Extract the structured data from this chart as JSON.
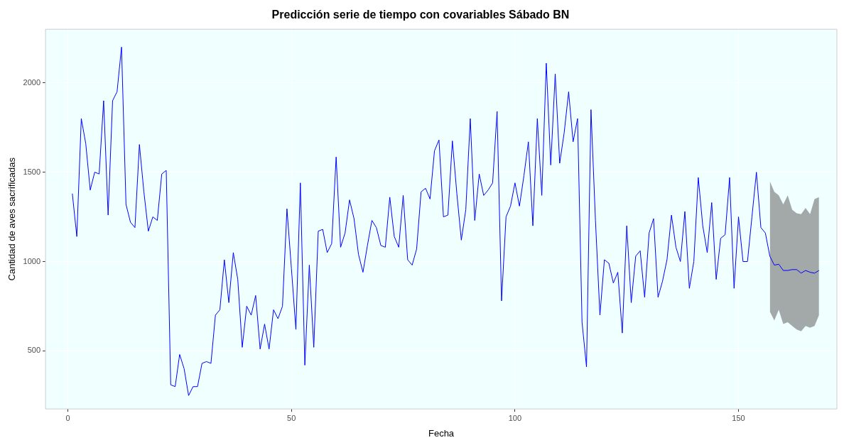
{
  "chart_data": {
    "type": "line",
    "title": "Predicción serie de tiempo con covariables Sábado BN",
    "xlabel": "Fecha",
    "ylabel": "Cantidad de aves sacrificadas",
    "x": [
      1,
      2,
      3,
      4,
      5,
      6,
      7,
      8,
      9,
      10,
      11,
      12,
      13,
      14,
      15,
      16,
      17,
      18,
      19,
      20,
      21,
      22,
      23,
      24,
      25,
      26,
      27,
      28,
      29,
      30,
      31,
      32,
      33,
      34,
      35,
      36,
      37,
      38,
      39,
      40,
      41,
      42,
      43,
      44,
      45,
      46,
      47,
      48,
      49,
      50,
      51,
      52,
      53,
      54,
      55,
      56,
      57,
      58,
      59,
      60,
      61,
      62,
      63,
      64,
      65,
      66,
      67,
      68,
      69,
      70,
      71,
      72,
      73,
      74,
      75,
      76,
      77,
      78,
      79,
      80,
      81,
      82,
      83,
      84,
      85,
      86,
      87,
      88,
      89,
      90,
      91,
      92,
      93,
      94,
      95,
      96,
      97,
      98,
      99,
      100,
      101,
      102,
      103,
      104,
      105,
      106,
      107,
      108,
      109,
      110,
      111,
      112,
      113,
      114,
      115,
      116,
      117,
      118,
      119,
      120,
      121,
      122,
      123,
      124,
      125,
      126,
      127,
      128,
      129,
      130,
      131,
      132,
      133,
      134,
      135,
      136,
      137,
      138,
      139,
      140,
      141,
      142,
      143,
      144,
      145,
      146,
      147,
      148,
      149,
      150,
      151,
      152,
      153,
      154,
      155,
      156,
      157,
      158,
      159,
      160,
      161,
      162,
      163,
      164,
      165,
      166,
      167,
      168
    ],
    "series": [
      {
        "color": "#0000ff",
        "values": [
          1380,
          1140,
          1800,
          1660,
          1400,
          1500,
          1490,
          1900,
          1260,
          1900,
          1950,
          2200,
          1320,
          1220,
          1190,
          1655,
          1390,
          1170,
          1250,
          1230,
          1490,
          1510,
          310,
          300,
          480,
          400,
          250,
          300,
          300,
          430,
          440,
          430,
          700,
          730,
          1010,
          770,
          1050,
          900,
          520,
          750,
          700,
          810,
          510,
          650,
          510,
          730,
          680,
          750,
          1295,
          960,
          620,
          1440,
          420,
          980,
          520,
          1170,
          1180,
          1050,
          1100,
          1585,
          1080,
          1160,
          1345,
          1240,
          1040,
          940,
          1090,
          1230,
          1190,
          1090,
          1080,
          1360,
          1140,
          1080,
          1370,
          1010,
          980,
          1070,
          1390,
          1410,
          1350,
          1620,
          1680,
          1250,
          1260,
          1675,
          1380,
          1120,
          1290,
          1800,
          1230,
          1490,
          1370,
          1400,
          1440,
          1840,
          780,
          1250,
          1310,
          1440,
          1310,
          1480,
          1670,
          1200,
          1800,
          1370,
          2110,
          1540,
          2050,
          1550,
          1720,
          1950,
          1670,
          1800,
          660,
          410,
          1850,
          1230,
          700,
          1010,
          990,
          880,
          940,
          600,
          1200,
          770,
          1030,
          1060,
          800,
          1160,
          1240,
          800,
          890,
          1010,
          1260,
          1080,
          1000,
          1280,
          850,
          1000,
          1470,
          1200,
          1050,
          1330,
          900,
          1130,
          1150,
          1470,
          850,
          1250,
          1000,
          1000,
          1250,
          1500,
          1190,
          1160,
          1030,
          980,
          985,
          950,
          950,
          955,
          955,
          935,
          950,
          940,
          935,
          950
        ],
        "lower": [
          null,
          null,
          null,
          null,
          null,
          null,
          null,
          null,
          null,
          null,
          null,
          null,
          null,
          null,
          null,
          null,
          null,
          null,
          null,
          null,
          null,
          null,
          null,
          null,
          null,
          null,
          null,
          null,
          null,
          null,
          null,
          null,
          null,
          null,
          null,
          null,
          null,
          null,
          null,
          null,
          null,
          null,
          null,
          null,
          null,
          null,
          null,
          null,
          null,
          null,
          null,
          null,
          null,
          null,
          null,
          null,
          null,
          null,
          null,
          null,
          null,
          null,
          null,
          null,
          null,
          null,
          null,
          null,
          null,
          null,
          null,
          null,
          null,
          null,
          null,
          null,
          null,
          null,
          null,
          null,
          null,
          null,
          null,
          null,
          null,
          null,
          null,
          null,
          null,
          null,
          null,
          null,
          null,
          null,
          null,
          null,
          null,
          null,
          null,
          null,
          null,
          null,
          null,
          null,
          null,
          null,
          null,
          null,
          null,
          null,
          null,
          null,
          null,
          null,
          null,
          null,
          null,
          null,
          null,
          null,
          null,
          null,
          null,
          null,
          null,
          null,
          null,
          null,
          null,
          null,
          null,
          null,
          null,
          null,
          null,
          null,
          null,
          null,
          null,
          null,
          null,
          null,
          null,
          null,
          null,
          null,
          null,
          null,
          null,
          null,
          null,
          null,
          null,
          null,
          null,
          null,
          720,
          670,
          730,
          650,
          660,
          640,
          620,
          610,
          640,
          630,
          640,
          700
        ],
        "upper": [
          null,
          null,
          null,
          null,
          null,
          null,
          null,
          null,
          null,
          null,
          null,
          null,
          null,
          null,
          null,
          null,
          null,
          null,
          null,
          null,
          null,
          null,
          null,
          null,
          null,
          null,
          null,
          null,
          null,
          null,
          null,
          null,
          null,
          null,
          null,
          null,
          null,
          null,
          null,
          null,
          null,
          null,
          null,
          null,
          null,
          null,
          null,
          null,
          null,
          null,
          null,
          null,
          null,
          null,
          null,
          null,
          null,
          null,
          null,
          null,
          null,
          null,
          null,
          null,
          null,
          null,
          null,
          null,
          null,
          null,
          null,
          null,
          null,
          null,
          null,
          null,
          null,
          null,
          null,
          null,
          null,
          null,
          null,
          null,
          null,
          null,
          null,
          null,
          null,
          null,
          null,
          null,
          null,
          null,
          null,
          null,
          null,
          null,
          null,
          null,
          null,
          null,
          null,
          null,
          null,
          null,
          null,
          null,
          null,
          null,
          null,
          null,
          null,
          null,
          null,
          null,
          null,
          null,
          null,
          null,
          null,
          null,
          null,
          null,
          null,
          null,
          null,
          null,
          null,
          null,
          null,
          null,
          null,
          null,
          null,
          null,
          null,
          null,
          null,
          null,
          null,
          null,
          null,
          null,
          null,
          null,
          null,
          null,
          null,
          null,
          null,
          null,
          null,
          null,
          null,
          null,
          1450,
          1390,
          1370,
          1320,
          1370,
          1290,
          1270,
          1265,
          1300,
          1265,
          1350,
          1360
        ]
      }
    ],
    "xlim": [
      -5,
      172
    ],
    "xticks": [
      0,
      50,
      100,
      150
    ],
    "ylim": [
      175,
      2300
    ],
    "yticks": [
      500,
      1000,
      1500,
      2000
    ],
    "grid": true,
    "legend": false,
    "marker": "none",
    "line_style": "solid"
  }
}
